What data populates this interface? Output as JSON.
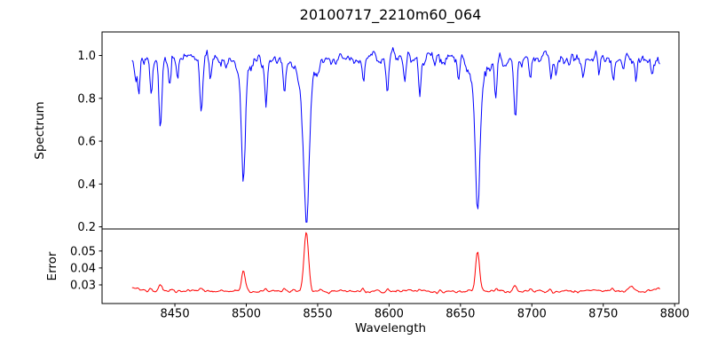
{
  "chart_data": {
    "type": "line",
    "title": "20100717_2210m60_064",
    "xlabel": "Wavelength",
    "grid": false,
    "legend": false,
    "seed": 20100717,
    "x_range": [
      8420,
      8790
    ],
    "x_step": 0.7,
    "xlim": [
      8399,
      8803
    ],
    "xticks": [
      8450,
      8500,
      8550,
      8600,
      8650,
      8700,
      8750,
      8800
    ],
    "panels": [
      {
        "name": "spectrum",
        "ylabel": "Spectrum",
        "color": "#0000ff",
        "ylim": [
          0.19,
          1.11
        ],
        "yticks": [
          "0.2",
          "0.4",
          "0.6",
          "0.8",
          "1.0"
        ],
        "continuum": 0.985,
        "noise_sigma": 0.018,
        "absorption_lines": [
          [
            8422.5,
            0.1,
            0.7
          ],
          [
            8424.8,
            0.14,
            0.8
          ],
          [
            8433.5,
            0.17,
            0.9
          ],
          [
            8439.8,
            0.32,
            1.0
          ],
          [
            8446.5,
            0.13,
            0.8
          ],
          [
            8451.8,
            0.1,
            0.7
          ],
          [
            8468.4,
            0.23,
            1.0
          ],
          [
            8475.0,
            0.09,
            0.7
          ],
          [
            8498.0,
            0.43,
            1.25
          ],
          [
            8498.0,
            0.125,
            3.2
          ],
          [
            8513.8,
            0.24,
            0.9
          ],
          [
            8526.7,
            0.15,
            0.8
          ],
          [
            8542.1,
            0.575,
            1.7
          ],
          [
            8542.1,
            0.18,
            5.0
          ],
          [
            8582.3,
            0.11,
            0.8
          ],
          [
            8598.8,
            0.13,
            0.8
          ],
          [
            8611.0,
            0.09,
            0.7
          ],
          [
            8621.6,
            0.15,
            0.8
          ],
          [
            8648.5,
            0.11,
            0.8
          ],
          [
            8662.1,
            0.545,
            1.5
          ],
          [
            8662.1,
            0.17,
            4.5
          ],
          [
            8674.7,
            0.16,
            0.8
          ],
          [
            8688.6,
            0.27,
            1.0
          ],
          [
            8699.0,
            0.09,
            0.7
          ],
          [
            8713.2,
            0.1,
            0.7
          ],
          [
            8717.0,
            0.08,
            0.7
          ],
          [
            8736.0,
            0.1,
            0.8
          ],
          [
            8747.0,
            0.08,
            0.7
          ],
          [
            8757.1,
            0.11,
            0.8
          ],
          [
            8764.0,
            0.08,
            0.7
          ],
          [
            8773.0,
            0.09,
            0.7
          ],
          [
            8784.0,
            0.07,
            0.7
          ]
        ]
      },
      {
        "name": "error",
        "ylabel": "Error",
        "color": "#ff0000",
        "ylim": [
          0.019,
          0.063
        ],
        "yticks": [
          "0.03",
          "0.04",
          "0.05"
        ],
        "baseline": 0.0263,
        "noise_sigma": 0.00045,
        "peaks": [
          [
            8418,
            0.002,
            5.0
          ],
          [
            8424,
            0.0012,
            1.0
          ],
          [
            8433,
            0.0012,
            1.0
          ],
          [
            8440,
            0.004,
            1.1
          ],
          [
            8447,
            0.001,
            0.9
          ],
          [
            8468,
            0.0022,
            1.0
          ],
          [
            8498,
            0.0125,
            1.3
          ],
          [
            8514,
            0.0018,
            0.9
          ],
          [
            8527,
            0.001,
            0.9
          ],
          [
            8542,
            0.0345,
            1.6
          ],
          [
            8582,
            0.001,
            0.9
          ],
          [
            8599,
            0.001,
            0.9
          ],
          [
            8621,
            0.001,
            0.9
          ],
          [
            8662,
            0.0225,
            1.4
          ],
          [
            8675,
            0.0012,
            0.9
          ],
          [
            8688,
            0.0035,
            1.0
          ],
          [
            8699,
            0.0008,
            0.9
          ],
          [
            8713,
            0.001,
            0.9
          ],
          [
            8736,
            0.001,
            0.9
          ],
          [
            8757,
            0.0012,
            0.9
          ],
          [
            8770,
            0.0022,
            2.0
          ],
          [
            8788,
            0.0015,
            2.5
          ]
        ]
      }
    ]
  }
}
